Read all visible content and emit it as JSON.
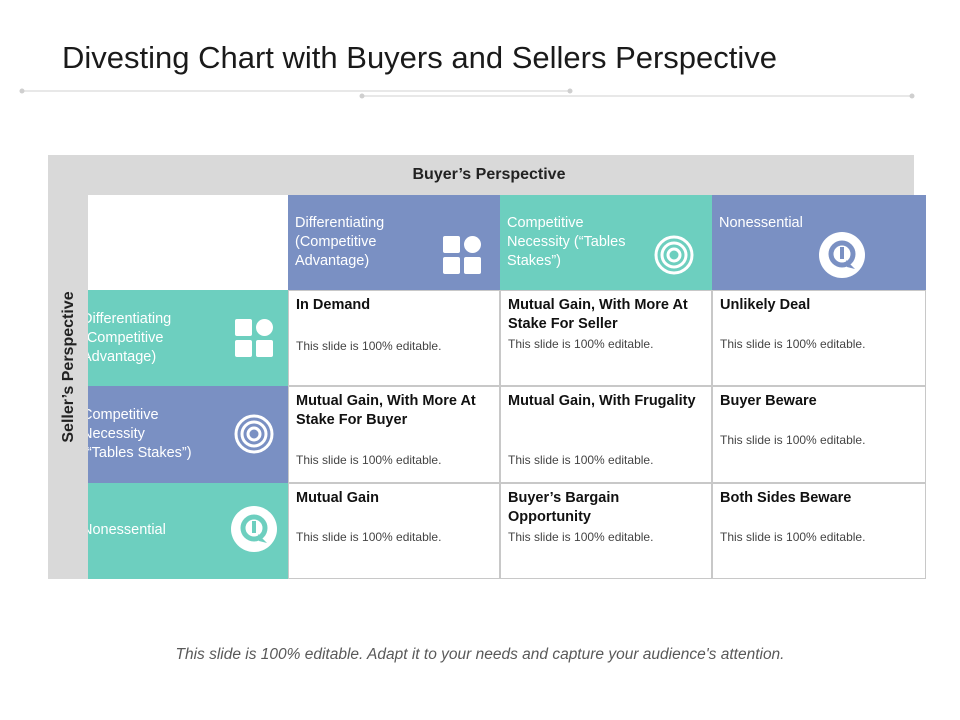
{
  "slide": {
    "title": "Divesting Chart with Buyers and Sellers Perspective",
    "footer": "This slide is 100% editable. Adapt it to your needs and capture your audience's attention."
  },
  "matrix": {
    "buyer_axis_label": "Buyer’s Perspective",
    "seller_axis_label": "Seller’s Perspective",
    "columns": [
      {
        "label": "Differentiating (Competitive Advantage)",
        "icon": "blocks-icon",
        "color": "#7a90c3"
      },
      {
        "label": "Competitive Necessity (“Tables Stakes”)",
        "icon": "target-icon",
        "color": "#6dcfbf"
      },
      {
        "label": "Nonessential",
        "icon": "q-badge-icon",
        "color": "#7a90c3"
      }
    ],
    "rows": [
      {
        "label": "Differentiating (Competitive Advantage)",
        "icon": "blocks-icon",
        "color": "#6dcfbf"
      },
      {
        "label": "Competitive Necessity (“Tables Stakes”)",
        "icon": "target-icon",
        "color": "#7a90c3"
      },
      {
        "label": "Nonessential",
        "icon": "q-badge-icon",
        "color": "#6dcfbf"
      }
    ],
    "cells": [
      [
        {
          "title": "In Demand",
          "desc": "This slide is 100% editable."
        },
        {
          "title": "Mutual Gain, With More At Stake For Seller",
          "desc": "This slide is 100% editable."
        },
        {
          "title": "Unlikely Deal",
          "desc": "This slide is 100% editable."
        }
      ],
      [
        {
          "title": "Mutual Gain, With More At Stake For Buyer",
          "desc": "This slide is 100% editable."
        },
        {
          "title": "Mutual Gain, With Frugality",
          "desc": "This slide is 100% editable."
        },
        {
          "title": "Buyer Beware",
          "desc": "This slide is 100% editable."
        }
      ],
      [
        {
          "title": "Mutual Gain",
          "desc": "This slide is 100% editable."
        },
        {
          "title": "Buyer’s Bargain Opportunity",
          "desc": "This slide is 100% editable."
        },
        {
          "title": "Both Sides Beware",
          "desc": "This slide is 100% editable."
        }
      ]
    ]
  }
}
